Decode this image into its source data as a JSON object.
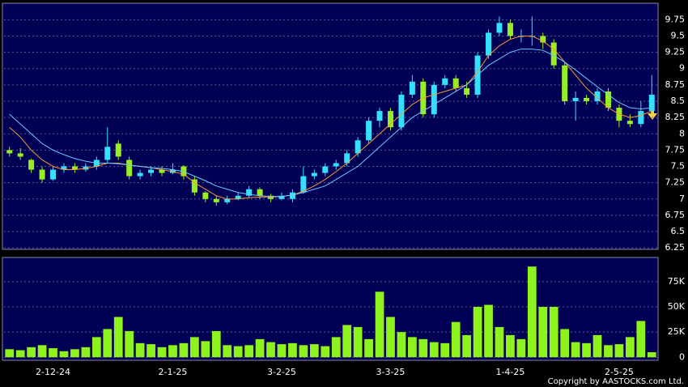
{
  "chart_data": [
    {
      "type": "candlestick",
      "up_color": "#33e0ff",
      "down_color": "#99ee22",
      "open": [
        7.75,
        7.7,
        7.6,
        7.45,
        7.3,
        7.45,
        7.5,
        7.45,
        7.5,
        7.6,
        7.85,
        7.6,
        7.35,
        7.4,
        7.45,
        7.4,
        7.5,
        7.3,
        7.1,
        7.0,
        6.95,
        7.0,
        7.05,
        7.15,
        7.05,
        7.0,
        7.0,
        7.1,
        7.35,
        7.4,
        7.5,
        7.55,
        7.7,
        7.9,
        8.2,
        8.35,
        8.1,
        8.6,
        8.8,
        8.3,
        8.75,
        8.85,
        8.7,
        8.6,
        9.2,
        9.55,
        9.7,
        9.5,
        9.5,
        9.5,
        9.4,
        9.05,
        8.5,
        8.55,
        8.5,
        8.65,
        8.4,
        8.2,
        8.15,
        8.35
      ],
      "high": [
        7.8,
        7.78,
        7.62,
        7.5,
        7.5,
        7.55,
        7.55,
        7.55,
        7.65,
        8.1,
        7.9,
        7.65,
        7.45,
        7.5,
        7.5,
        7.55,
        7.52,
        7.35,
        7.12,
        7.05,
        7.05,
        7.1,
        7.2,
        7.18,
        7.08,
        7.1,
        7.15,
        7.5,
        7.45,
        7.55,
        7.6,
        7.75,
        7.95,
        8.25,
        8.4,
        8.4,
        8.65,
        8.9,
        8.85,
        8.8,
        8.9,
        8.9,
        8.8,
        9.25,
        9.6,
        9.8,
        9.75,
        9.6,
        9.8,
        9.55,
        9.45,
        9.1,
        8.65,
        8.6,
        8.7,
        8.7,
        8.45,
        8.3,
        8.5,
        8.9
      ],
      "low": [
        7.65,
        7.6,
        7.4,
        7.25,
        7.28,
        7.4,
        7.4,
        7.42,
        7.45,
        7.55,
        7.6,
        7.3,
        7.3,
        7.35,
        7.35,
        7.38,
        7.3,
        7.05,
        6.95,
        6.9,
        6.92,
        6.98,
        7.02,
        7.0,
        6.95,
        6.98,
        6.95,
        7.08,
        7.3,
        7.35,
        7.45,
        7.5,
        7.65,
        7.85,
        8.1,
        8.05,
        8.05,
        8.55,
        8.25,
        8.25,
        8.7,
        8.65,
        8.55,
        8.55,
        9.15,
        9.5,
        9.45,
        9.4,
        9.35,
        9.3,
        9.0,
        8.45,
        8.2,
        8.45,
        8.45,
        8.35,
        8.1,
        8.1,
        8.1,
        8.3
      ],
      "close": [
        7.7,
        7.65,
        7.45,
        7.3,
        7.45,
        7.5,
        7.45,
        7.5,
        7.6,
        7.8,
        7.65,
        7.35,
        7.4,
        7.45,
        7.4,
        7.45,
        7.35,
        7.1,
        7.0,
        6.95,
        7.0,
        7.05,
        7.15,
        7.05,
        7.0,
        7.05,
        7.1,
        7.35,
        7.4,
        7.5,
        7.55,
        7.7,
        7.9,
        8.2,
        8.35,
        8.1,
        8.6,
        8.8,
        8.3,
        8.75,
        8.85,
        8.7,
        8.6,
        9.2,
        9.55,
        9.7,
        9.5,
        9.5,
        9.5,
        9.4,
        9.05,
        8.5,
        8.55,
        8.5,
        8.65,
        8.4,
        8.2,
        8.15,
        8.35,
        8.6
      ],
      "lines": [
        {
          "color": "#ff9a2e",
          "values": [
            8.1,
            7.95,
            7.75,
            7.6,
            7.5,
            7.45,
            7.45,
            7.47,
            7.5,
            7.55,
            7.55,
            7.52,
            7.5,
            7.48,
            7.45,
            7.42,
            7.38,
            7.25,
            7.15,
            7.05,
            7.0,
            7.0,
            7.02,
            7.03,
            7.03,
            7.04,
            7.06,
            7.12,
            7.2,
            7.3,
            7.42,
            7.55,
            7.7,
            7.85,
            8.0,
            8.15,
            8.3,
            8.45,
            8.55,
            8.6,
            8.65,
            8.7,
            8.75,
            8.95,
            9.2,
            9.35,
            9.45,
            9.5,
            9.5,
            9.42,
            9.3,
            9.1,
            8.9,
            8.7,
            8.55,
            8.4,
            8.3,
            8.25,
            8.28,
            8.35
          ]
        },
        {
          "color": "#6ec8ff",
          "values": [
            8.3,
            8.15,
            8.0,
            7.85,
            7.75,
            7.68,
            7.62,
            7.58,
            7.55,
            7.55,
            7.54,
            7.52,
            7.5,
            7.48,
            7.47,
            7.45,
            7.42,
            7.35,
            7.28,
            7.2,
            7.15,
            7.1,
            7.07,
            7.05,
            7.04,
            7.04,
            7.06,
            7.1,
            7.15,
            7.2,
            7.3,
            7.4,
            7.5,
            7.65,
            7.8,
            7.95,
            8.1,
            8.25,
            8.35,
            8.45,
            8.55,
            8.65,
            8.75,
            8.9,
            9.05,
            9.15,
            9.25,
            9.3,
            9.3,
            9.28,
            9.2,
            9.1,
            8.98,
            8.85,
            8.72,
            8.6,
            8.48,
            8.4,
            8.38,
            8.4
          ]
        }
      ],
      "ylim": [
        6.24,
        9.99
      ],
      "yticks": [
        6.25,
        6.5,
        6.75,
        7,
        7.25,
        7.5,
        7.75,
        8,
        8.25,
        8.5,
        8.75,
        9,
        9.25,
        9.5,
        9.75
      ],
      "grid": true
    },
    {
      "type": "bar",
      "color": "#8ef21c",
      "categories": [
        null,
        null,
        null,
        null,
        "2-12-24",
        null,
        null,
        null,
        null,
        null,
        null,
        null,
        null,
        null,
        null,
        "2-1-25",
        null,
        null,
        null,
        null,
        null,
        null,
        null,
        null,
        null,
        "3-2-25",
        null,
        null,
        null,
        null,
        null,
        null,
        null,
        null,
        null,
        "3-3-25",
        null,
        null,
        null,
        null,
        null,
        null,
        null,
        null,
        null,
        null,
        "1-4-25",
        null,
        null,
        null,
        null,
        null,
        null,
        null,
        null,
        null,
        "2-5-25",
        null,
        null,
        null
      ],
      "values": [
        8000,
        7000,
        10000,
        12000,
        9000,
        6000,
        8000,
        10000,
        20000,
        28000,
        40000,
        26000,
        14000,
        13000,
        10000,
        12000,
        14000,
        20000,
        16000,
        26000,
        12000,
        11000,
        12000,
        18000,
        15000,
        13000,
        14000,
        12000,
        13000,
        11000,
        20000,
        32000,
        30000,
        18000,
        65000,
        40000,
        25000,
        20000,
        18000,
        15000,
        14000,
        35000,
        22000,
        50000,
        52000,
        30000,
        22000,
        18000,
        90000,
        50000,
        50000,
        28000,
        15000,
        14000,
        22000,
        12000,
        13000,
        20000,
        36000,
        5000
      ],
      "ylim": [
        -3000,
        99000
      ],
      "yticks": [
        0,
        {
          "value": 25000,
          "label": "25K"
        },
        {
          "value": 50000,
          "label": "50K"
        },
        {
          "value": 75000,
          "label": "75K"
        }
      ],
      "grid": true
    }
  ],
  "footer": "Copyright by AASTOCKS.com Ltd."
}
